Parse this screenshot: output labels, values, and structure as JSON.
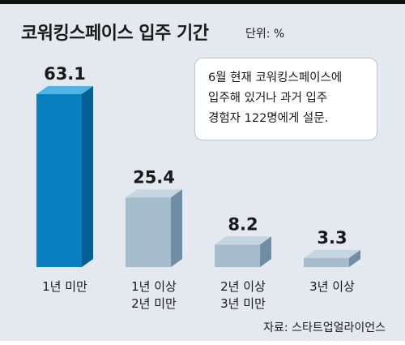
{
  "title": "코워킹스페이스 입주 기간",
  "unit": "단위: %",
  "note": [
    "6월 현재 코워킹스페이스에",
    "입주해 있거나 과거 입주",
    "경험자 122명에게 설문."
  ],
  "source": "자료: 스타트업얼라이언스",
  "colors": {
    "first": {
      "front": "#0a7fbf",
      "top": "#4fb3e3",
      "side": "#055f94"
    },
    "rest": {
      "front": "#a5bccd",
      "top": "#c5d5e1",
      "side": "#6f8ea5"
    }
  },
  "chart_data": {
    "type": "bar",
    "categories": [
      [
        "1년 미만"
      ],
      [
        "1년 이상",
        "2년 미만"
      ],
      [
        "2년 이상",
        "3년 미만"
      ],
      [
        "3년 이상"
      ]
    ],
    "values": [
      63.1,
      25.4,
      8.2,
      3.3
    ],
    "value_labels": [
      "63.1",
      "25.4",
      "8.2",
      "3.3"
    ],
    "ylim": [
      0,
      63.1
    ]
  }
}
